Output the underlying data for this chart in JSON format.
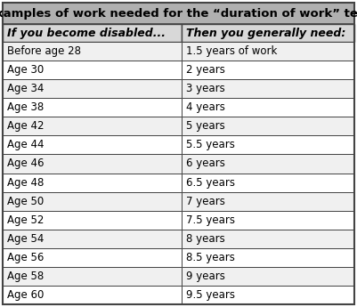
{
  "title": "Examples of work needed for the “duration of work” test",
  "col1_header": "If you become disabled...",
  "col2_header": "Then you generally need:",
  "rows": [
    [
      "Before age 28",
      "1.5 years of work"
    ],
    [
      "Age 30",
      "2 years"
    ],
    [
      "Age 34",
      "3 years"
    ],
    [
      "Age 38",
      "4 years"
    ],
    [
      "Age 42",
      "5 years"
    ],
    [
      "Age 44",
      "5.5 years"
    ],
    [
      "Age 46",
      "6 years"
    ],
    [
      "Age 48",
      "6.5 years"
    ],
    [
      "Age 50",
      "7 years"
    ],
    [
      "Age 52",
      "7.5 years"
    ],
    [
      "Age 54",
      "8 years"
    ],
    [
      "Age 56",
      "8.5 years"
    ],
    [
      "Age 58",
      "9 years"
    ],
    [
      "Age 60",
      "9.5 years"
    ]
  ],
  "title_bg": "#b0b0b0",
  "header_bg": "#d8d8d8",
  "row_bg_odd": "#f0f0f0",
  "row_bg_even": "#ffffff",
  "border_color": "#444444",
  "text_color": "#000000",
  "title_fontsize": 9.5,
  "header_fontsize": 9.0,
  "row_fontsize": 8.5,
  "fig_bg": "#ffffff",
  "col_split": 0.51
}
